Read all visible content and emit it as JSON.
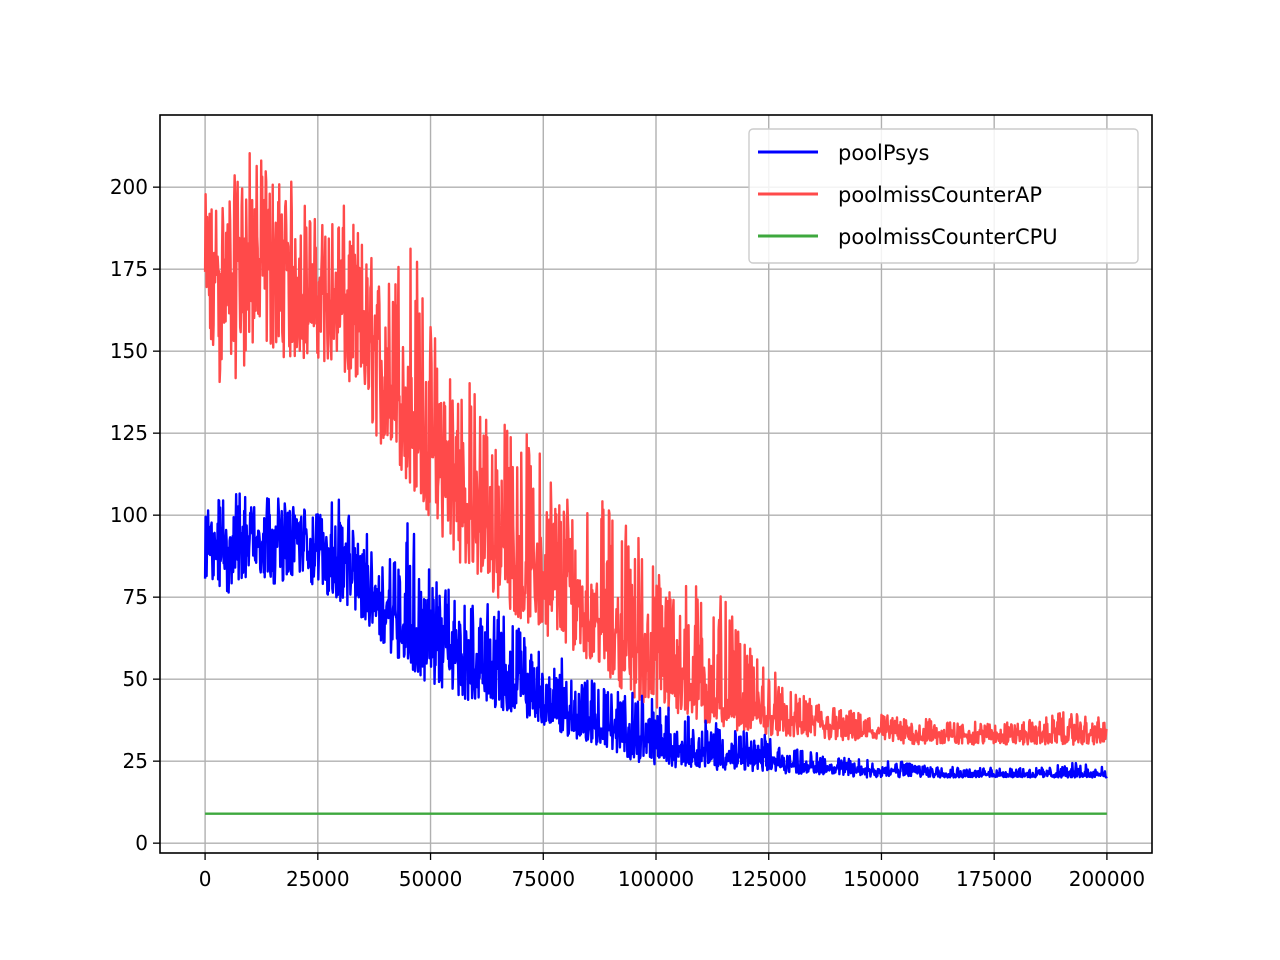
{
  "chart_data": {
    "type": "line",
    "title": "",
    "xlabel": "",
    "ylabel": "",
    "xlim": [
      -10000,
      210000
    ],
    "ylim": [
      -3,
      222
    ],
    "grid": true,
    "legend_position": "top-right",
    "x_ticks": [
      0,
      25000,
      50000,
      75000,
      100000,
      125000,
      150000,
      175000,
      200000
    ],
    "x_tick_labels": [
      "0",
      "25000",
      "50000",
      "75000",
      "100000",
      "125000",
      "150000",
      "175000",
      "200000"
    ],
    "y_ticks": [
      0,
      25,
      50,
      75,
      100,
      125,
      150,
      175,
      200
    ],
    "y_tick_labels": [
      "0",
      "25",
      "50",
      "75",
      "100",
      "125",
      "150",
      "175",
      "200"
    ],
    "series": [
      {
        "name": "poolPsys",
        "color": "#0000ff",
        "x": [
          0,
          5000,
          10000,
          15000,
          20000,
          25000,
          30000,
          35000,
          40000,
          45000,
          50000,
          55000,
          60000,
          65000,
          70000,
          75000,
          80000,
          85000,
          90000,
          95000,
          100000,
          105000,
          110000,
          115000,
          120000,
          125000,
          130000,
          135000,
          140000,
          145000,
          150000,
          155000,
          160000,
          165000,
          170000,
          175000,
          180000,
          185000,
          190000,
          195000,
          200000
        ],
        "y_mean": [
          90,
          92,
          94,
          94,
          93,
          90,
          86,
          80,
          72,
          66,
          62,
          58,
          54,
          50,
          46,
          42,
          40,
          36,
          34,
          32,
          30,
          29,
          28,
          27,
          26,
          25,
          24,
          23,
          23,
          22,
          22,
          22,
          22,
          21,
          21,
          21,
          21,
          21,
          21,
          21,
          21
        ],
        "y_min": [
          78,
          75,
          80,
          79,
          80,
          78,
          72,
          68,
          60,
          52,
          48,
          45,
          43,
          41,
          39,
          36,
          33,
          30,
          28,
          25,
          24,
          23,
          23,
          22,
          22,
          22,
          21,
          21,
          21,
          20,
          20,
          20,
          20,
          20,
          20,
          20,
          20,
          20,
          20,
          20,
          20
        ],
        "y_max": [
          104,
          106,
          110,
          106,
          103,
          102,
          105,
          96,
          88,
          102,
          84,
          76,
          74,
          72,
          66,
          58,
          56,
          50,
          48,
          46,
          44,
          40,
          38,
          36,
          34,
          33,
          29,
          28,
          26,
          26,
          25,
          25,
          24,
          24,
          23,
          23,
          23,
          23,
          24,
          25,
          23
        ]
      },
      {
        "name": "poolmissCounterAP",
        "color": "#ff4a4a",
        "x": [
          0,
          5000,
          10000,
          15000,
          20000,
          25000,
          30000,
          35000,
          40000,
          45000,
          50000,
          55000,
          60000,
          65000,
          70000,
          75000,
          80000,
          85000,
          90000,
          95000,
          100000,
          105000,
          110000,
          115000,
          120000,
          125000,
          130000,
          135000,
          140000,
          145000,
          150000,
          155000,
          160000,
          165000,
          170000,
          175000,
          180000,
          185000,
          190000,
          195000,
          200000
        ],
        "y_mean": [
          170,
          175,
          178,
          176,
          172,
          168,
          163,
          155,
          142,
          130,
          118,
          108,
          100,
          92,
          85,
          80,
          75,
          70,
          65,
          60,
          55,
          50,
          46,
          42,
          40,
          38,
          37,
          36,
          35,
          34,
          34,
          33,
          33,
          33,
          33,
          33,
          33,
          33,
          33,
          33,
          33
        ],
        "y_min": [
          143,
          138,
          148,
          150,
          146,
          148,
          142,
          132,
          118,
          110,
          98,
          88,
          80,
          74,
          68,
          64,
          60,
          56,
          50,
          44,
          40,
          38,
          36,
          35,
          34,
          33,
          32,
          32,
          31,
          31,
          31,
          30,
          30,
          30,
          30,
          30,
          30,
          30,
          30,
          30,
          30
        ],
        "y_max": [
          198,
          200,
          212,
          205,
          202,
          190,
          196,
          186,
          170,
          195,
          160,
          150,
          140,
          130,
          128,
          120,
          110,
          108,
          103,
          100,
          85,
          82,
          80,
          75,
          60,
          56,
          46,
          44,
          42,
          40,
          40,
          38,
          38,
          37,
          37,
          37,
          37,
          38,
          40,
          39,
          38
        ]
      },
      {
        "name": "poolmissCounterCPU",
        "color": "#3ea83e",
        "x": [
          0,
          200000
        ],
        "y": [
          9,
          9
        ]
      }
    ]
  }
}
